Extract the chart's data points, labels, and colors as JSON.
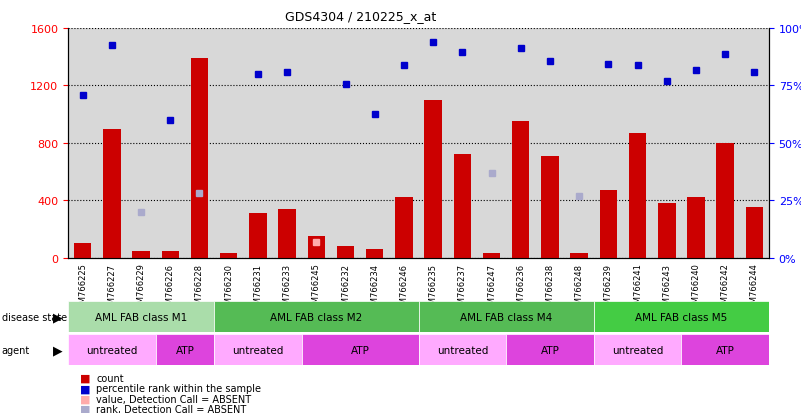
{
  "title": "GDS4304 / 210225_x_at",
  "samples": [
    "GSM766225",
    "GSM766227",
    "GSM766229",
    "GSM766226",
    "GSM766228",
    "GSM766230",
    "GSM766231",
    "GSM766233",
    "GSM766245",
    "GSM766232",
    "GSM766234",
    "GSM766246",
    "GSM766235",
    "GSM766237",
    "GSM766247",
    "GSM766236",
    "GSM766238",
    "GSM766248",
    "GSM766239",
    "GSM766241",
    "GSM766243",
    "GSM766240",
    "GSM766242",
    "GSM766244"
  ],
  "count_values": [
    100,
    900,
    50,
    50,
    1390,
    30,
    310,
    340,
    150,
    80,
    60,
    420,
    1100,
    720,
    30,
    950,
    710,
    30,
    470,
    870,
    380,
    420,
    800,
    350
  ],
  "rank_values": [
    1130,
    1480,
    null,
    960,
    null,
    null,
    1280,
    1290,
    null,
    1210,
    1000,
    1340,
    1500,
    1430,
    null,
    1460,
    1370,
    null,
    1350,
    1340,
    1230,
    1310,
    1420,
    1290
  ],
  "rank_absent": [
    false,
    false,
    true,
    false,
    true,
    true,
    false,
    false,
    true,
    false,
    false,
    false,
    false,
    false,
    true,
    false,
    false,
    true,
    false,
    false,
    false,
    false,
    false,
    false
  ],
  "absent_rank_indices": [
    2,
    4,
    14,
    17
  ],
  "absent_rank_values": [
    320,
    450,
    590,
    430
  ],
  "value_absent_idx": [
    8
  ],
  "value_absent_vals": [
    110
  ],
  "ylim_left": [
    0,
    1600
  ],
  "ylim_right": [
    0,
    100
  ],
  "yticks_left": [
    0,
    400,
    800,
    1200,
    1600
  ],
  "yticks_right": [
    0,
    25,
    50,
    75,
    100
  ],
  "bar_color": "#cc0000",
  "rank_color": "#0000cc",
  "absent_rank_color": "#aaaacc",
  "absent_value_color": "#ffaaaa",
  "bg_color": "#d8d8d8",
  "ds_groups": [
    {
      "label": "AML FAB class M1",
      "start": 0,
      "end": 5,
      "color": "#aaddaa"
    },
    {
      "label": "AML FAB class M2",
      "start": 5,
      "end": 12,
      "color": "#55bb55"
    },
    {
      "label": "AML FAB class M4",
      "start": 12,
      "end": 18,
      "color": "#55bb55"
    },
    {
      "label": "AML FAB class M5",
      "start": 18,
      "end": 24,
      "color": "#44cc44"
    }
  ],
  "ag_groups": [
    {
      "label": "untreated",
      "start": 0,
      "end": 3,
      "color": "#ffaaff"
    },
    {
      "label": "ATP",
      "start": 3,
      "end": 5,
      "color": "#dd44dd"
    },
    {
      "label": "untreated",
      "start": 5,
      "end": 8,
      "color": "#ffaaff"
    },
    {
      "label": "ATP",
      "start": 8,
      "end": 12,
      "color": "#dd44dd"
    },
    {
      "label": "untreated",
      "start": 12,
      "end": 15,
      "color": "#ffaaff"
    },
    {
      "label": "ATP",
      "start": 15,
      "end": 18,
      "color": "#dd44dd"
    },
    {
      "label": "untreated",
      "start": 18,
      "end": 21,
      "color": "#ffaaff"
    },
    {
      "label": "ATP",
      "start": 21,
      "end": 24,
      "color": "#dd44dd"
    }
  ]
}
